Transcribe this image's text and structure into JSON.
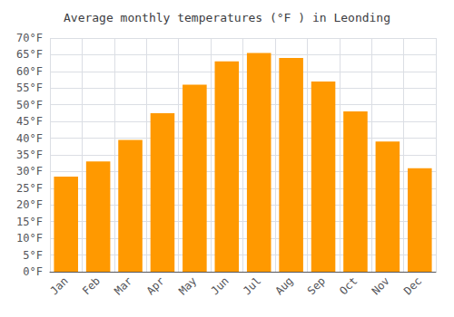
{
  "chart_data": {
    "type": "bar",
    "title": "Average monthly temperatures (°F ) in Leonding",
    "categories": [
      "Jan",
      "Feb",
      "Mar",
      "Apr",
      "May",
      "Jun",
      "Jul",
      "Aug",
      "Sep",
      "Oct",
      "Nov",
      "Dec"
    ],
    "values": [
      28.5,
      33.0,
      39.5,
      47.5,
      56.0,
      63.0,
      65.5,
      64.0,
      57.0,
      48.0,
      39.0,
      31.0
    ],
    "color": "#FF9900",
    "ylim": [
      0,
      70
    ],
    "yticks": [
      {
        "value": 0,
        "label": "0°F"
      },
      {
        "value": 5,
        "label": "5°F"
      },
      {
        "value": 10,
        "label": "10°F"
      },
      {
        "value": 15,
        "label": "15°F"
      },
      {
        "value": 20,
        "label": "20°F"
      },
      {
        "value": 25,
        "label": "25°F"
      },
      {
        "value": 30,
        "label": "30°F"
      },
      {
        "value": 35,
        "label": "35°F"
      },
      {
        "value": 40,
        "label": "40°F"
      },
      {
        "value": 45,
        "label": "45°F"
      },
      {
        "value": 50,
        "label": "50°F"
      },
      {
        "value": 55,
        "label": "55°F"
      },
      {
        "value": 60,
        "label": "60°F"
      },
      {
        "value": 65,
        "label": "65°F"
      },
      {
        "value": 70,
        "label": "70°F"
      }
    ],
    "grid": true
  }
}
